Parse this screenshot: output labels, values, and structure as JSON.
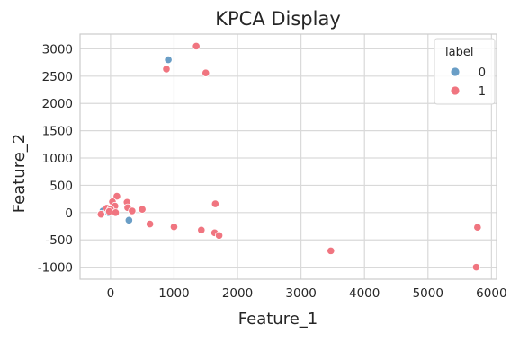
{
  "chart_data": {
    "type": "scatter",
    "title": "KPCA Display",
    "xlabel": "Feature_1",
    "ylabel": "Feature_2",
    "xlim": [
      -480,
      6080
    ],
    "ylim": [
      -1220,
      3270
    ],
    "xticks": [
      0,
      1000,
      2000,
      3000,
      4000,
      5000,
      6000
    ],
    "yticks": [
      -1000,
      -500,
      0,
      500,
      1000,
      1500,
      2000,
      2500,
      3000
    ],
    "grid": true,
    "legend": {
      "title": "label",
      "placement": "top-right"
    },
    "series": [
      {
        "name": "0",
        "color": "#6a9ec6",
        "points": [
          {
            "x": 910,
            "y": 2800
          },
          {
            "x": 290,
            "y": -140
          },
          {
            "x": -120,
            "y": 30
          },
          {
            "x": -30,
            "y": 0
          }
        ]
      },
      {
        "name": "1",
        "color": "#f07580",
        "points": [
          {
            "x": 1350,
            "y": 3050
          },
          {
            "x": 880,
            "y": 2630
          },
          {
            "x": 1500,
            "y": 2560
          },
          {
            "x": 100,
            "y": 300
          },
          {
            "x": 30,
            "y": 200
          },
          {
            "x": 260,
            "y": 190
          },
          {
            "x": 1650,
            "y": 160
          },
          {
            "x": 70,
            "y": 120
          },
          {
            "x": 270,
            "y": 90
          },
          {
            "x": -60,
            "y": 80
          },
          {
            "x": 0,
            "y": 60
          },
          {
            "x": 500,
            "y": 60
          },
          {
            "x": 340,
            "y": 30
          },
          {
            "x": -20,
            "y": 20
          },
          {
            "x": 80,
            "y": 0
          },
          {
            "x": -150,
            "y": -30
          },
          {
            "x": 620,
            "y": -210
          },
          {
            "x": 1000,
            "y": -260
          },
          {
            "x": 1430,
            "y": -320
          },
          {
            "x": 1640,
            "y": -370
          },
          {
            "x": 1710,
            "y": -420
          },
          {
            "x": 3470,
            "y": -700
          },
          {
            "x": 5780,
            "y": -270
          },
          {
            "x": 5760,
            "y": -1000
          }
        ]
      }
    ]
  }
}
